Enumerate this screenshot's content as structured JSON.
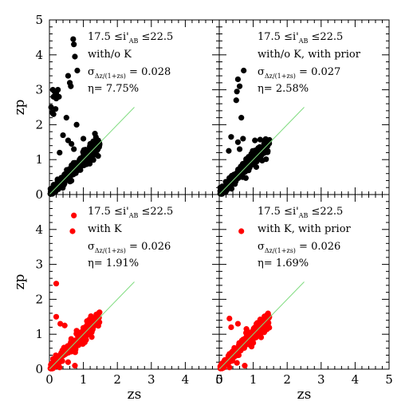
{
  "chart_data": [
    {
      "type": "scatter",
      "panel": "top-left",
      "point_color": "#000000",
      "xlim": [
        0,
        5
      ],
      "ylim": [
        0,
        5
      ],
      "xlabel": "",
      "ylabel": "zp",
      "xticks": [],
      "yticks": [
        "0",
        "1",
        "2",
        "3",
        "4",
        "5"
      ],
      "annotation": {
        "line1": "17.5 ≤i'",
        "line1_sub": "AB",
        "line1_end": " ≤22.5",
        "label": "with/o K",
        "sigma_sym": "σ",
        "sigma_sub": "Δz/(1+zs)",
        "sigma_val": " = 0.028",
        "eta": "η= 7.75%",
        "label_color": "#000000"
      },
      "reference_line": {
        "x": [
          0,
          2.5
        ],
        "y": [
          0,
          2.5
        ],
        "color": "#7fdc7f"
      },
      "outliers": [
        [
          0.7,
          4.45
        ],
        [
          0.72,
          4.3
        ],
        [
          0.75,
          3.95
        ],
        [
          0.82,
          3.55
        ],
        [
          0.55,
          3.4
        ],
        [
          0.6,
          3.2
        ],
        [
          0.63,
          3.1
        ],
        [
          0.1,
          3.0
        ],
        [
          0.15,
          2.95
        ],
        [
          0.2,
          2.9
        ],
        [
          0.25,
          3.0
        ],
        [
          0.12,
          2.8
        ],
        [
          0.2,
          2.75
        ],
        [
          0.28,
          2.8
        ],
        [
          0.05,
          2.5
        ],
        [
          0.08,
          2.35
        ],
        [
          0.12,
          2.3
        ],
        [
          0.18,
          2.45
        ],
        [
          0.5,
          2.2
        ],
        [
          0.8,
          2.0
        ],
        [
          0.4,
          1.7
        ],
        [
          0.55,
          1.55
        ],
        [
          0.65,
          1.45
        ],
        [
          0.72,
          1.3
        ],
        [
          0.3,
          1.2
        ],
        [
          1.0,
          1.6
        ],
        [
          1.2,
          1.45
        ]
      ]
    },
    {
      "type": "scatter",
      "panel": "top-right",
      "point_color": "#000000",
      "xlim": [
        0,
        5
      ],
      "ylim": [
        0,
        5
      ],
      "xlabel": "",
      "ylabel": "",
      "xticks": [],
      "yticks": [],
      "annotation": {
        "line1": "17.5 ≤i'",
        "line1_sub": "AB",
        "line1_end": " ≤22.5",
        "label": "with/o K, with prior",
        "sigma_sym": "σ",
        "sigma_sub": "Δz/(1+zs)",
        "sigma_val": " = 0.027",
        "eta": "η= 2.58%",
        "label_color": "#000000"
      },
      "reference_line": {
        "x": [
          0,
          2.5
        ],
        "y": [
          0,
          2.5
        ],
        "color": "#7fdc7f"
      },
      "outliers": [
        [
          0.72,
          3.55
        ],
        [
          0.55,
          3.3
        ],
        [
          0.6,
          3.1
        ],
        [
          0.52,
          2.95
        ],
        [
          0.5,
          2.7
        ],
        [
          0.65,
          2.2
        ],
        [
          0.35,
          1.65
        ],
        [
          0.55,
          1.5
        ],
        [
          0.7,
          1.6
        ],
        [
          1.05,
          1.55
        ],
        [
          0.28,
          1.25
        ],
        [
          0.6,
          1.3
        ]
      ]
    },
    {
      "type": "scatter",
      "panel": "bottom-left",
      "point_color": "#ff0000",
      "xlim": [
        0,
        5
      ],
      "ylim": [
        0,
        5
      ],
      "xlabel": "zs",
      "ylabel": "zp",
      "xticks": [
        "0",
        "1",
        "2",
        "3",
        "4",
        "5"
      ],
      "yticks": [
        "0",
        "1",
        "2",
        "3",
        "4"
      ],
      "annotation": {
        "line1": "17.5 ≤i'",
        "line1_sub": "AB",
        "line1_end": " ≤22.5",
        "label": "with K",
        "sigma_sym": "σ",
        "sigma_sub": "Δz/(1+zs)",
        "sigma_val": " = 0.026",
        "eta": "η= 1.91%",
        "label_color": "#ff0000"
      },
      "reference_line": {
        "x": [
          0,
          2.5
        ],
        "y": [
          0,
          2.5
        ],
        "color": "#7fdc7f"
      },
      "outliers": [
        [
          0.72,
          4.4
        ],
        [
          0.68,
          3.95
        ],
        [
          0.2,
          2.45
        ],
        [
          0.2,
          1.5
        ],
        [
          0.32,
          1.3
        ],
        [
          0.45,
          1.25
        ],
        [
          0.8,
          1.1
        ],
        [
          0.3,
          0.05
        ],
        [
          0.75,
          0.1
        ],
        [
          0.55,
          0.2
        ]
      ]
    },
    {
      "type": "scatter",
      "panel": "bottom-right",
      "point_color": "#ff0000",
      "xlim": [
        0,
        5
      ],
      "ylim": [
        0,
        5
      ],
      "xlabel": "zs",
      "ylabel": "",
      "xticks": [
        "0",
        "1",
        "2",
        "3",
        "4",
        "5"
      ],
      "yticks": [],
      "annotation": {
        "line1": "17.5 ≤i'",
        "line1_sub": "AB",
        "line1_end": " ≤22.5",
        "label": "with K, with prior",
        "sigma_sym": "σ",
        "sigma_sub": "Δz/(1+zs)",
        "sigma_val": " = 0.026",
        "eta": "η= 1.69%",
        "label_color": "#ff0000"
      },
      "reference_line": {
        "x": [
          0,
          2.5
        ],
        "y": [
          0,
          2.5
        ],
        "color": "#7fdc7f"
      },
      "outliers": [
        [
          0.65,
          3.95
        ],
        [
          0.3,
          1.45
        ],
        [
          0.55,
          1.3
        ],
        [
          0.8,
          1.15
        ],
        [
          0.35,
          1.2
        ],
        [
          0.3,
          0.05
        ],
        [
          0.75,
          0.1
        ],
        [
          0.52,
          0.18
        ]
      ]
    }
  ]
}
